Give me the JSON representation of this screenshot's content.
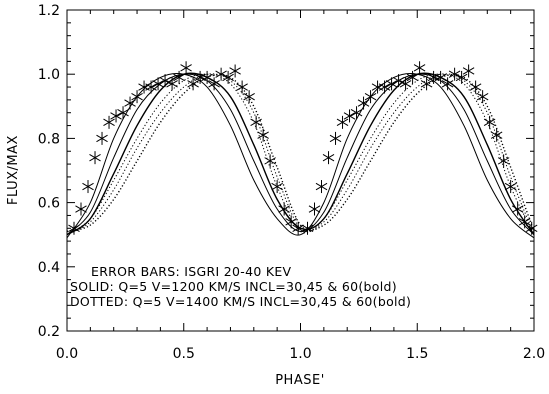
{
  "chart_data": {
    "type": "line",
    "xlabel": "PHASE'",
    "ylabel": "FLUX/MAX",
    "xlim": [
      0.0,
      2.0
    ],
    "ylim": [
      0.2,
      1.2
    ],
    "x_ticks": [
      "0.0",
      "0.5",
      "1.0",
      "1.5",
      "2.0"
    ],
    "y_ticks": [
      "0.2",
      "0.4",
      "0.6",
      "0.8",
      "1.0",
      "1.2"
    ],
    "x_tick_values": [
      0.0,
      0.5,
      1.0,
      1.5,
      2.0
    ],
    "y_tick_values": [
      0.2,
      0.4,
      0.6,
      0.8,
      1.0,
      1.2
    ],
    "annotations": [
      "ERROR BARS: ISGRI 20-40 KEV",
      "SOLID:   Q=5 V=1200 KM/S INCL=30,45 & 60(bold)",
      "DOTTED: Q=5 V=1400 KM/S INCL=30,45 & 60(bold)"
    ],
    "grid": false,
    "x": [
      0.0,
      0.1,
      0.2,
      0.3,
      0.4,
      0.5,
      0.6,
      0.7,
      0.8,
      0.9,
      1.0,
      1.1,
      1.2,
      1.3,
      1.4,
      1.5,
      1.6,
      1.7,
      1.8,
      1.9,
      2.0
    ],
    "series": [
      {
        "style": "solid",
        "values": [
          0.49,
          0.6,
          0.8,
          0.93,
          0.99,
          1.0,
          0.96,
          0.84,
          0.67,
          0.55,
          0.5,
          0.6,
          0.8,
          0.93,
          0.99,
          1.0,
          0.96,
          0.84,
          0.67,
          0.55,
          0.49
        ]
      },
      {
        "style": "solid",
        "values": [
          0.5,
          0.57,
          0.74,
          0.89,
          0.97,
          1.0,
          0.98,
          0.89,
          0.73,
          0.58,
          0.51,
          0.57,
          0.74,
          0.89,
          0.97,
          1.0,
          0.98,
          0.89,
          0.73,
          0.58,
          0.5
        ]
      },
      {
        "style": "solid",
        "values": [
          0.5,
          0.55,
          0.69,
          0.84,
          0.95,
          1.0,
          0.99,
          0.93,
          0.78,
          0.61,
          0.52,
          0.55,
          0.69,
          0.84,
          0.95,
          1.0,
          0.99,
          0.93,
          0.78,
          0.61,
          0.5
        ]
      },
      {
        "style": "dotted",
        "values": [
          0.5,
          0.55,
          0.67,
          0.8,
          0.91,
          0.98,
          1.0,
          0.97,
          0.85,
          0.65,
          0.51,
          0.55,
          0.67,
          0.8,
          0.91,
          0.98,
          1.0,
          0.97,
          0.85,
          0.65,
          0.5
        ]
      },
      {
        "style": "dotted",
        "values": [
          0.5,
          0.54,
          0.64,
          0.77,
          0.88,
          0.96,
          1.0,
          0.98,
          0.88,
          0.68,
          0.52,
          0.54,
          0.64,
          0.77,
          0.88,
          0.96,
          1.0,
          0.98,
          0.88,
          0.68,
          0.5
        ]
      },
      {
        "style": "dotted",
        "values": [
          0.51,
          0.53,
          0.61,
          0.73,
          0.85,
          0.94,
          0.99,
          0.99,
          0.9,
          0.71,
          0.53,
          0.53,
          0.61,
          0.73,
          0.85,
          0.94,
          0.99,
          0.99,
          0.9,
          0.71,
          0.51
        ]
      }
    ],
    "points": {
      "marker": "asterisk",
      "x": [
        0.03,
        0.06,
        0.09,
        0.12,
        0.15,
        0.18,
        0.21,
        0.24,
        0.27,
        0.3,
        0.33,
        0.36,
        0.39,
        0.42,
        0.45,
        0.48,
        0.51,
        0.54,
        0.57,
        0.6,
        0.63,
        0.66,
        0.69,
        0.72,
        0.75,
        0.78,
        0.81,
        0.84,
        0.87,
        0.9,
        0.93,
        0.96,
        0.99,
        1.03,
        1.06,
        1.09,
        1.12,
        1.15,
        1.18,
        1.21,
        1.24,
        1.27,
        1.3,
        1.33,
        1.36,
        1.39,
        1.42,
        1.45,
        1.48,
        1.51,
        1.54,
        1.57,
        1.6,
        1.63,
        1.66,
        1.69,
        1.72,
        1.75,
        1.78,
        1.81,
        1.84,
        1.87,
        1.9,
        1.93,
        1.96,
        1.99
      ],
      "y": [
        0.52,
        0.58,
        0.65,
        0.74,
        0.8,
        0.85,
        0.87,
        0.88,
        0.91,
        0.93,
        0.96,
        0.96,
        0.97,
        0.98,
        0.97,
        0.99,
        1.02,
        0.97,
        0.99,
        0.99,
        0.97,
        1.0,
        0.99,
        1.01,
        0.96,
        0.93,
        0.85,
        0.81,
        0.73,
        0.65,
        0.58,
        0.54,
        0.52,
        0.52,
        0.58,
        0.65,
        0.74,
        0.8,
        0.85,
        0.87,
        0.88,
        0.91,
        0.93,
        0.96,
        0.96,
        0.97,
        0.98,
        0.97,
        0.99,
        1.02,
        0.97,
        0.99,
        0.99,
        0.97,
        1.0,
        0.99,
        1.01,
        0.96,
        0.93,
        0.85,
        0.81,
        0.73,
        0.65,
        0.58,
        0.54,
        0.52
      ]
    }
  }
}
